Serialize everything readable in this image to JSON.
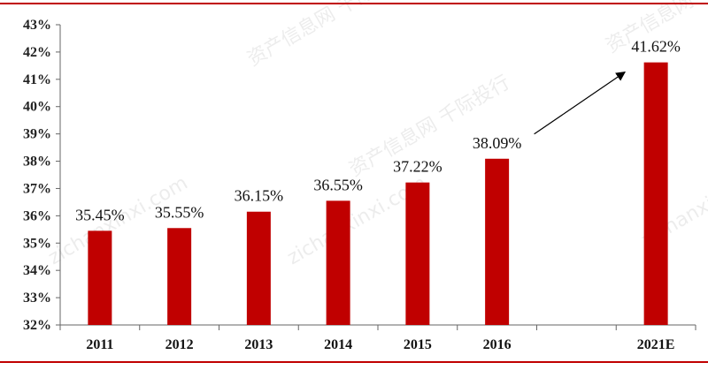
{
  "colors": {
    "bar": "#c00000",
    "rule": "#c00000",
    "axis": "#666666",
    "arrow": "#000000"
  },
  "watermark": [
    "资产信息网 千际投行",
    "zichanxinxi.com"
  ],
  "chart_data": {
    "type": "bar",
    "categories": [
      "2011",
      "2012",
      "2013",
      "2014",
      "2015",
      "2016",
      "",
      "2021E"
    ],
    "values": [
      35.45,
      35.55,
      36.15,
      36.55,
      37.22,
      38.09,
      null,
      41.62
    ],
    "data_labels": [
      "35.45%",
      "35.55%",
      "36.15%",
      "36.55%",
      "37.22%",
      "38.09%",
      "",
      "41.62%"
    ],
    "yticks": [
      "32%",
      "33%",
      "34%",
      "35%",
      "36%",
      "37%",
      "38%",
      "39%",
      "40%",
      "41%",
      "42%",
      "43%"
    ],
    "ylim": [
      32,
      43
    ],
    "unit": "%",
    "title": "",
    "xlabel": "",
    "ylabel": "",
    "grid": false,
    "legend": "none",
    "annotation": {
      "type": "arrow",
      "from_category": "2016",
      "to_category": "2021E"
    }
  }
}
